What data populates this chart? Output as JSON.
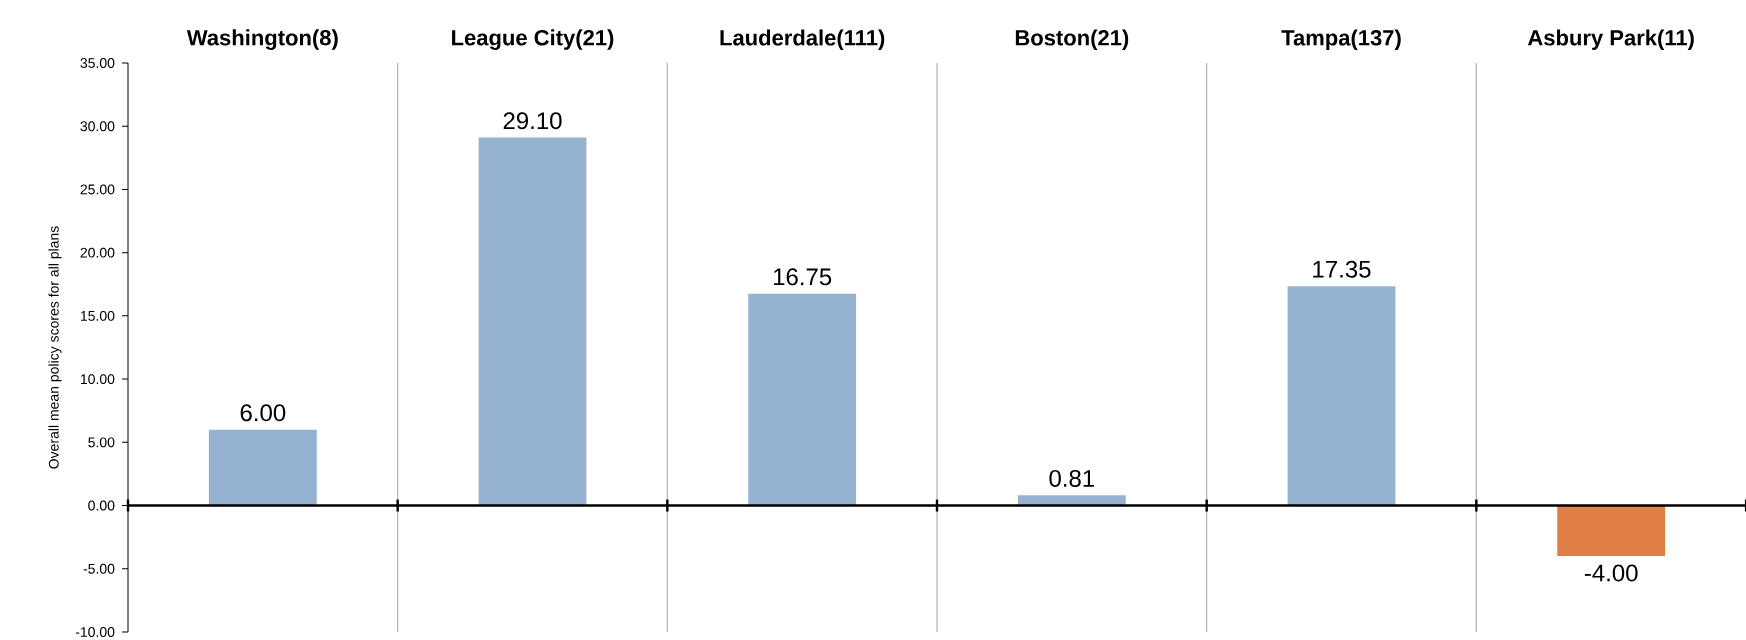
{
  "chart_data": {
    "type": "bar",
    "ylabel": "Overall mean policy scores for all plans",
    "categories": [
      "Washington(8)",
      "League City(21)",
      "Lauderdale(111)",
      "Boston(21)",
      "Tampa(137)",
      "Asbury Park(11)"
    ],
    "values": [
      6.0,
      29.1,
      16.75,
      0.81,
      17.35,
      -4.0
    ],
    "value_labels": [
      "6.00",
      "29.10",
      "16.75",
      "0.81",
      "17.35",
      "-4.00"
    ],
    "colors": [
      "#95b3d0",
      "#95b3d0",
      "#95b3d0",
      "#95b3d0",
      "#95b3d0",
      "#e07f45"
    ],
    "ylim": [
      -10,
      35
    ],
    "yticks": [
      {
        "value": -10,
        "label": "-10.00"
      },
      {
        "value": -5,
        "label": "-5.00"
      },
      {
        "value": 0,
        "label": "0.00"
      },
      {
        "value": 5,
        "label": "5.00"
      },
      {
        "value": 10,
        "label": "10.00"
      },
      {
        "value": 15,
        "label": "15.00"
      },
      {
        "value": 20,
        "label": "20.00"
      },
      {
        "value": 25,
        "label": "25.00"
      },
      {
        "value": 30,
        "label": "30.00"
      },
      {
        "value": 35,
        "label": "35.00"
      }
    ],
    "grid": "x"
  }
}
